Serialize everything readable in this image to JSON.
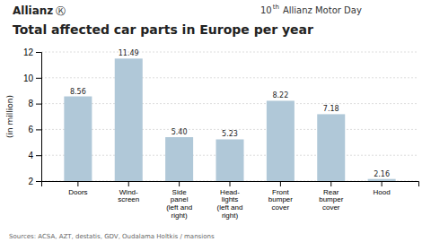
{
  "chart_data": {
    "type": "bar",
    "title": "Total affected car parts in Europe per year",
    "categories": [
      "Doors",
      "Wind-\nscreen",
      "Side\npanel\n(left and\nright)",
      "Head-\nlights\n(left and\nright)",
      "Front\nbumper\ncover",
      "Rear\nbumper\ncover",
      "Hood"
    ],
    "values": [
      8.56,
      11.49,
      5.4,
      5.23,
      8.22,
      7.18,
      2.16
    ],
    "value_labels": [
      "8.56",
      "11.49",
      "5.40",
      "5.23",
      "8.22",
      "7.18",
      "2.16"
    ],
    "data_labels": true,
    "color": "#b0c8d8",
    "y_label": "(in million)",
    "ylim": [
      2,
      12
    ],
    "yticks": [
      2,
      4,
      6,
      8,
      10,
      12
    ],
    "grid": true,
    "annotations": [
      "Allianz",
      "Ⓚ",
      "10",
      "th",
      "Allianz Motor Day",
      "Sources: ACSA, AZT, destatis, GDV, Oudalama Holtkis / mansions"
    ]
  }
}
